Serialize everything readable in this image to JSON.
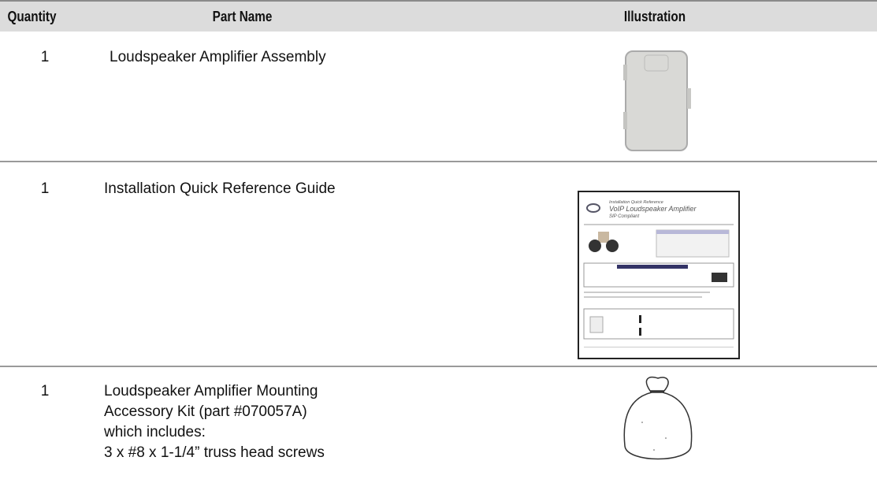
{
  "header": {
    "quantity": "Quantity",
    "part_name": "Part Name",
    "illustration": "Illustration"
  },
  "rows": [
    {
      "quantity": 1,
      "part_name": [
        "Loudspeaker Amplifier Assembly"
      ]
    },
    {
      "quantity": 1,
      "part_name": [
        "Installation Quick Reference Guide"
      ],
      "illustration_text": [
        "Installation Quick Reference",
        "VoIP Loudspeaker Amplifier",
        "SIP Compliant"
      ]
    },
    {
      "quantity": 1,
      "part_name": [
        "Loudspeaker Amplifier Mounting",
        "Accessory Kit (part #070057A)",
        "which includes:",
        "3 x #8 x 1-1/4” truss head screws"
      ]
    }
  ]
}
